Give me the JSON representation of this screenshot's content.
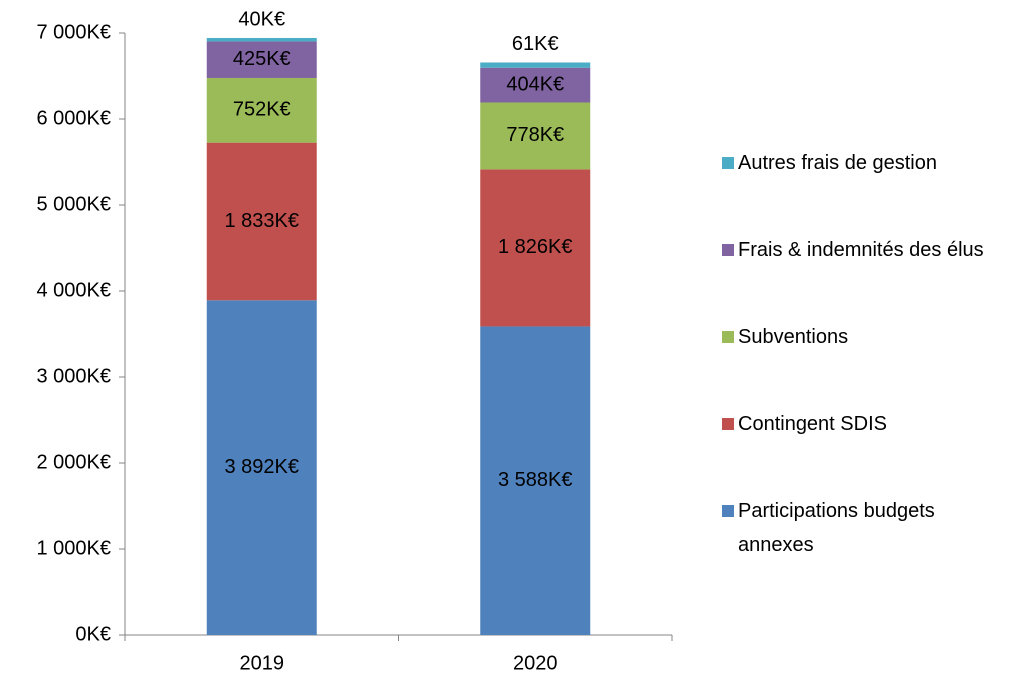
{
  "chart_data": {
    "type": "stacked_bar",
    "categories": [
      "2019",
      "2020"
    ],
    "series": [
      {
        "name": "Participations budgets annexes",
        "color": "#4f81bd",
        "values": [
          3892,
          3588
        ],
        "value_labels": [
          "3 892K€",
          "3 588K€"
        ]
      },
      {
        "name": "Contingent SDIS",
        "color": "#c0504d",
        "values": [
          1833,
          1826
        ],
        "value_labels": [
          "1 833K€",
          "1 826K€"
        ]
      },
      {
        "name": "Subventions",
        "color": "#9bbb59",
        "values": [
          752,
          778
        ],
        "value_labels": [
          "752K€",
          "778K€"
        ]
      },
      {
        "name": "Frais & indemnités des élus",
        "color": "#8064a2",
        "values": [
          425,
          404
        ],
        "value_labels": [
          "425K€",
          "404K€"
        ]
      },
      {
        "name": "Autres frais de gestion",
        "color": "#4bacc6",
        "values": [
          40,
          61
        ],
        "value_labels": [
          "40K€",
          "61K€"
        ]
      }
    ],
    "ylim": [
      0,
      7000
    ],
    "yticks": [
      {
        "value": 0,
        "label": "0K€"
      },
      {
        "value": 1000,
        "label": "1 000K€"
      },
      {
        "value": 2000,
        "label": "2 000K€"
      },
      {
        "value": 3000,
        "label": "3 000K€"
      },
      {
        "value": 4000,
        "label": "4 000K€"
      },
      {
        "value": 5000,
        "label": "5 000K€"
      },
      {
        "value": 6000,
        "label": "6 000K€"
      },
      {
        "value": 7000,
        "label": "7 000K€"
      }
    ],
    "legend": "right",
    "grid": false
  }
}
